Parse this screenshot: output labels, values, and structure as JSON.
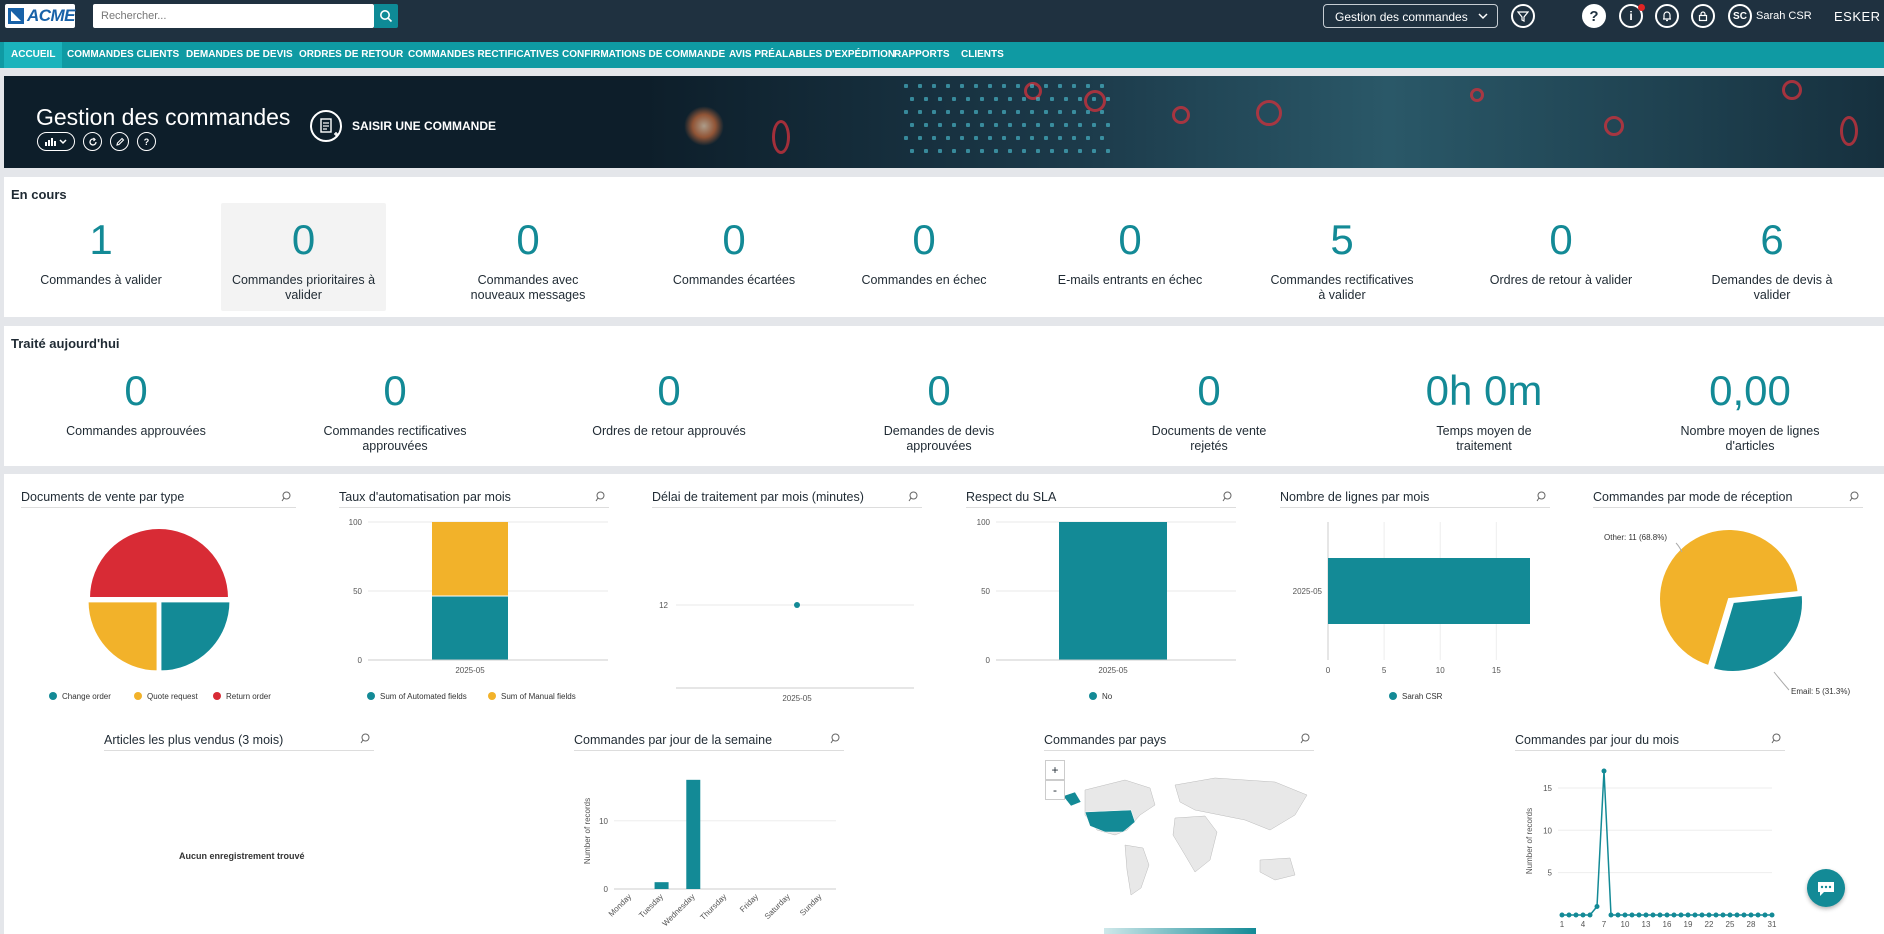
{
  "app": {
    "logo_text": "ACME",
    "brand": "ESKER",
    "accent": "#138a96",
    "chart_teal": "#138a96",
    "chart_yellow": "#f2b22a",
    "chart_red": "#d82b35"
  },
  "topbar": {
    "search_placeholder": "Rechercher...",
    "view_select": "Gestion des commandes",
    "user_initials": "SC",
    "user_name": "Sarah CSR",
    "icons": [
      "filter-icon",
      "help-icon",
      "info-icon",
      "bell-icon",
      "lock-icon"
    ]
  },
  "nav": {
    "items": [
      "ACCUEIL",
      "COMMANDES CLIENTS",
      "DEMANDES DE DEVIS",
      "ORDRES DE RETOUR",
      "COMMANDES RECTIFICATIVES",
      "CONFIRMATIONS DE COMMANDE",
      "AVIS PRÉALABLES D'EXPÉDITION",
      "RAPPORTS",
      "CLIENTS"
    ]
  },
  "banner": {
    "title": "Gestion des commandes",
    "enter_order": "SAISIR UNE COMMANDE",
    "tools": [
      "chart-icon",
      "refresh-icon",
      "edit-icon",
      "help-icon"
    ]
  },
  "en_cours": {
    "title": "En cours",
    "kpis": [
      {
        "value": "1",
        "label": "Commandes à valider"
      },
      {
        "value": "0",
        "label": "Commandes prioritaires à valider"
      },
      {
        "value": "0",
        "label": "Commandes avec nouveaux messages"
      },
      {
        "value": "0",
        "label": "Commandes écartées"
      },
      {
        "value": "0",
        "label": "Commandes en échec"
      },
      {
        "value": "0",
        "label": "E-mails entrants en échec"
      },
      {
        "value": "5",
        "label": "Commandes rectificatives à valider"
      },
      {
        "value": "0",
        "label": "Ordres de retour à valider"
      },
      {
        "value": "6",
        "label": "Demandes de devis à valider"
      }
    ]
  },
  "traite": {
    "title": "Traité aujourd'hui",
    "kpis": [
      {
        "value": "0",
        "label": "Commandes approuvées"
      },
      {
        "value": "0",
        "label": "Commandes rectificatives approuvées"
      },
      {
        "value": "0",
        "label": "Ordres de retour approuvés"
      },
      {
        "value": "0",
        "label": "Demandes de devis approuvées"
      },
      {
        "value": "0",
        "label": "Documents de vente rejetés"
      },
      {
        "value": "0h 0m",
        "label": "Temps moyen de traitement"
      },
      {
        "value": "0,00",
        "label": "Nombre moyen de lignes d'articles"
      }
    ]
  },
  "widgets": {
    "w1": "Documents de vente par type",
    "w2": "Taux d'automatisation par mois",
    "w3": "Délai de traitement par mois (minutes)",
    "w4": "Respect du SLA",
    "w5": "Nombre de lignes par mois",
    "w6": "Commandes par mode de réception",
    "w7": "Articles les plus vendus (3 mois)",
    "w8": "Commandes par jour de la semaine",
    "w9": "Commandes par pays",
    "w10": "Commandes par jour du mois",
    "empty": "Aucun enregistrement trouvé",
    "zoom_in": "+",
    "zoom_out": "-"
  },
  "chart_data": [
    {
      "type": "pie",
      "title": "Documents de vente par type",
      "series": [
        {
          "name": "Change order",
          "value": 25
        },
        {
          "name": "Quote request",
          "value": 25
        },
        {
          "name": "Return order",
          "value": 50
        }
      ]
    },
    {
      "type": "bar",
      "title": "Taux d'automatisation par mois",
      "categories": [
        "2025-05"
      ],
      "series": [
        {
          "name": "Sum of Automated fields",
          "values": [
            46
          ]
        },
        {
          "name": "Sum of Manual fields",
          "values": [
            54
          ]
        }
      ],
      "ylim": [
        0,
        100
      ],
      "yticks": [
        0,
        50,
        100
      ]
    },
    {
      "type": "line",
      "title": "Délai de traitement par mois (minutes)",
      "categories": [
        "2025-05"
      ],
      "values": [
        12
      ],
      "yticks": [
        12
      ]
    },
    {
      "type": "bar",
      "title": "Respect du SLA",
      "categories": [
        "2025-05"
      ],
      "series": [
        {
          "name": "No",
          "values": [
            100
          ]
        }
      ],
      "ylim": [
        0,
        100
      ],
      "yticks": [
        0,
        50,
        100
      ]
    },
    {
      "type": "bar",
      "orientation": "horizontal",
      "title": "Nombre de lignes par mois",
      "categories": [
        "2025-05"
      ],
      "series": [
        {
          "name": "Sarah CSR",
          "values": [
            18
          ]
        }
      ],
      "xlim": [
        0,
        18
      ],
      "xticks": [
        0,
        5,
        10,
        15
      ]
    },
    {
      "type": "pie",
      "title": "Commandes par mode de réception",
      "series": [
        {
          "name": "Other",
          "value": 11,
          "label": "Other: 11 (68.8%)"
        },
        {
          "name": "Email",
          "value": 5,
          "label": "Email: 5 (31.3%)"
        }
      ]
    },
    {
      "type": "bar",
      "title": "Commandes par jour de la semaine",
      "categories": [
        "Monday",
        "Tuesday",
        "Wednesday",
        "Thursday",
        "Friday",
        "Saturday",
        "Sunday"
      ],
      "values": [
        0,
        1,
        16,
        0,
        0,
        0,
        0
      ],
      "ylabel": "Number of records",
      "yticks": [
        0,
        10
      ]
    },
    {
      "type": "line",
      "title": "Commandes par jour du mois",
      "x": [
        1,
        2,
        3,
        4,
        5,
        6,
        7,
        8,
        9,
        10,
        11,
        12,
        13,
        14,
        15,
        16,
        17,
        18,
        19,
        20,
        21,
        22,
        23,
        24,
        25,
        26,
        27,
        28,
        29,
        30,
        31
      ],
      "values": [
        0,
        0,
        0,
        0,
        0,
        1,
        17,
        0,
        0,
        0,
        0,
        0,
        0,
        0,
        0,
        0,
        0,
        0,
        0,
        0,
        0,
        0,
        0,
        0,
        0,
        0,
        0,
        0,
        0,
        0,
        0
      ],
      "xticks": [
        1,
        4,
        7,
        10,
        13,
        16,
        19,
        22,
        25,
        28,
        31
      ],
      "yticks": [
        5,
        10,
        15
      ],
      "ylabel": "Number of records"
    }
  ]
}
